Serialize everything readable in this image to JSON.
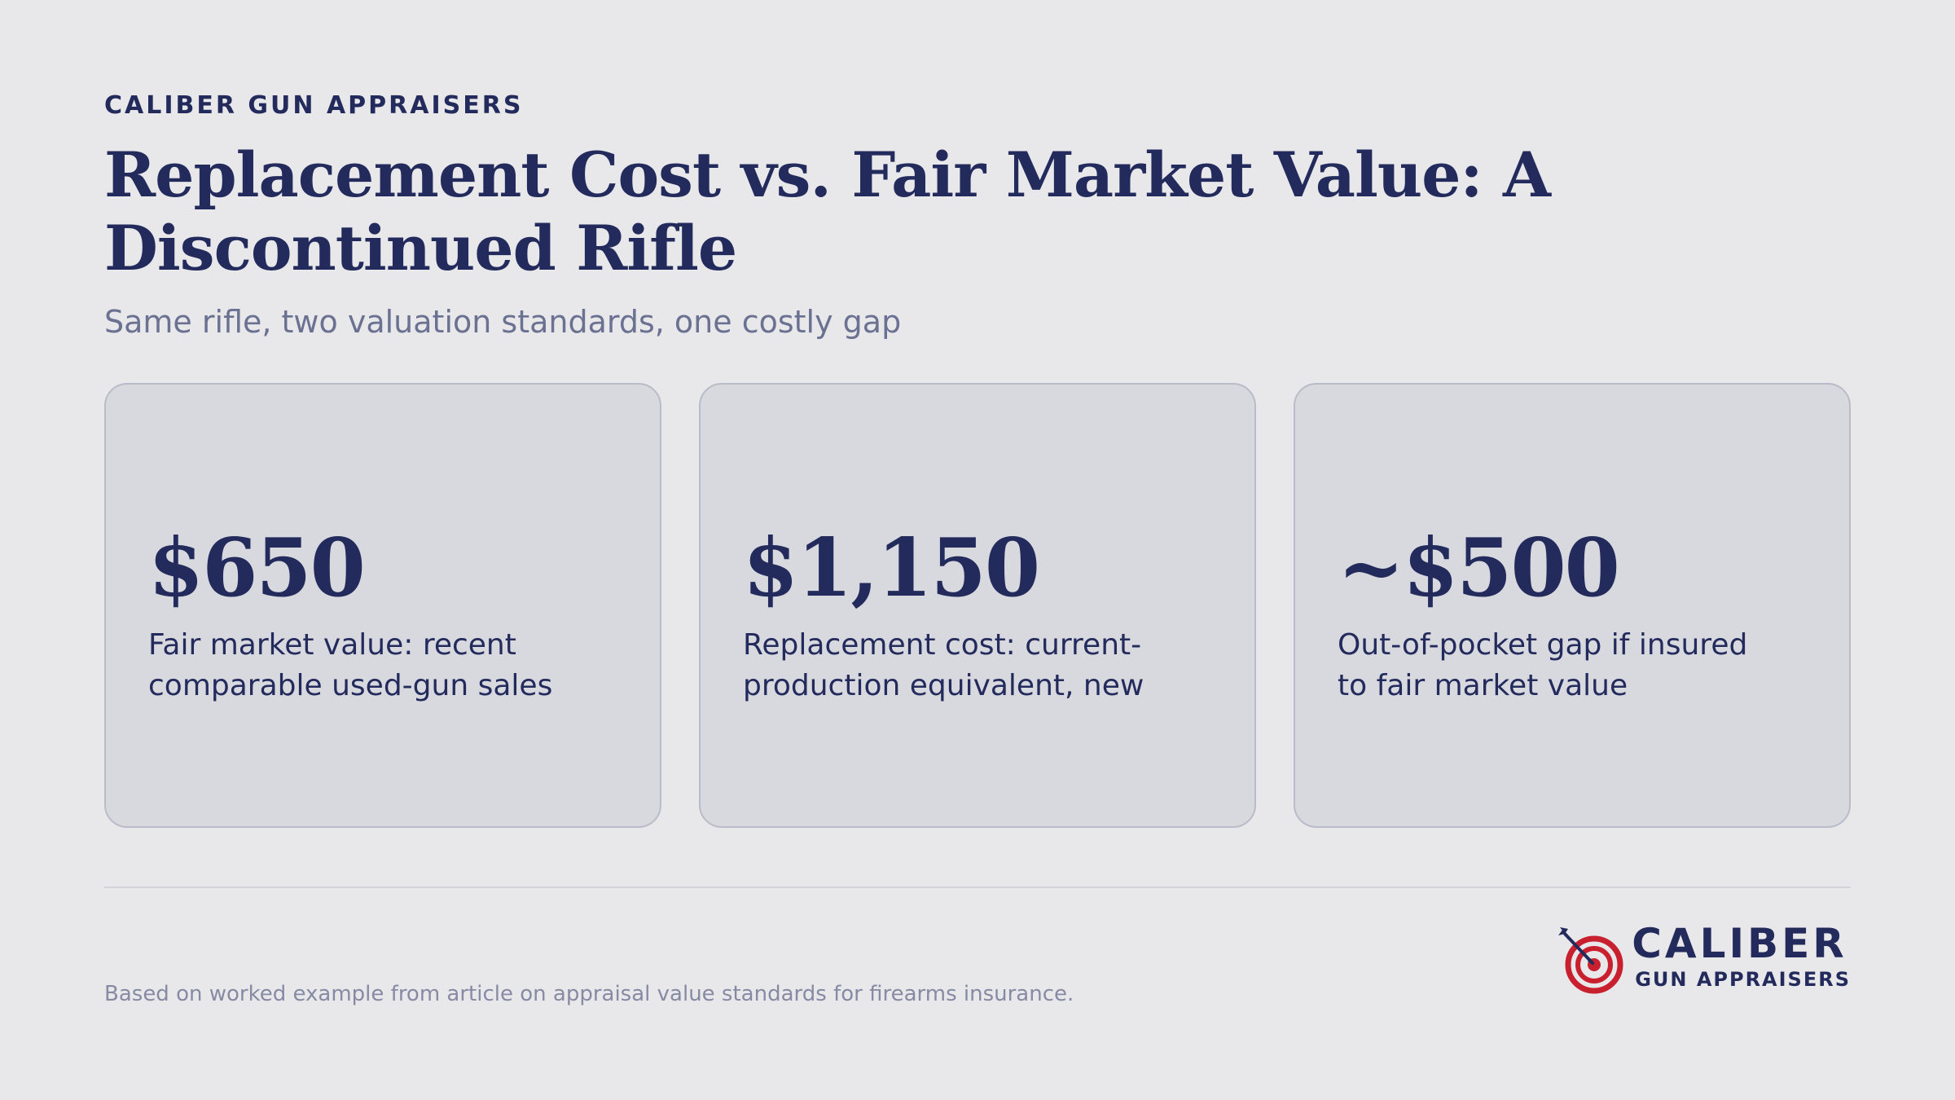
{
  "header": {
    "eyebrow": "CALIBER GUN APPRAISERS",
    "title": "Replacement Cost vs. Fair Market Value: A Discontinued Rifle",
    "subtitle": "Same rifle, two valuation standards, one costly gap"
  },
  "cards": [
    {
      "value": "$650",
      "description": "Fair market value: recent comparable used-gun sales"
    },
    {
      "value": "$1,150",
      "description": "Replacement cost: current-production equivalent, new"
    },
    {
      "value": "~$500",
      "description": "Out-of-pocket gap if insured to fair market value"
    }
  ],
  "footer": {
    "note": "Based on worked example from article on appraisal value standards for firearms insurance."
  },
  "logo": {
    "name": "CALIBER",
    "tagline": "GUN APPRAISERS",
    "icon": "target-arrow-icon"
  },
  "colors": {
    "navy": "#232a5c",
    "accent_red": "#c8202e",
    "background": "#e8e8ea",
    "card": "#d8d9de"
  }
}
